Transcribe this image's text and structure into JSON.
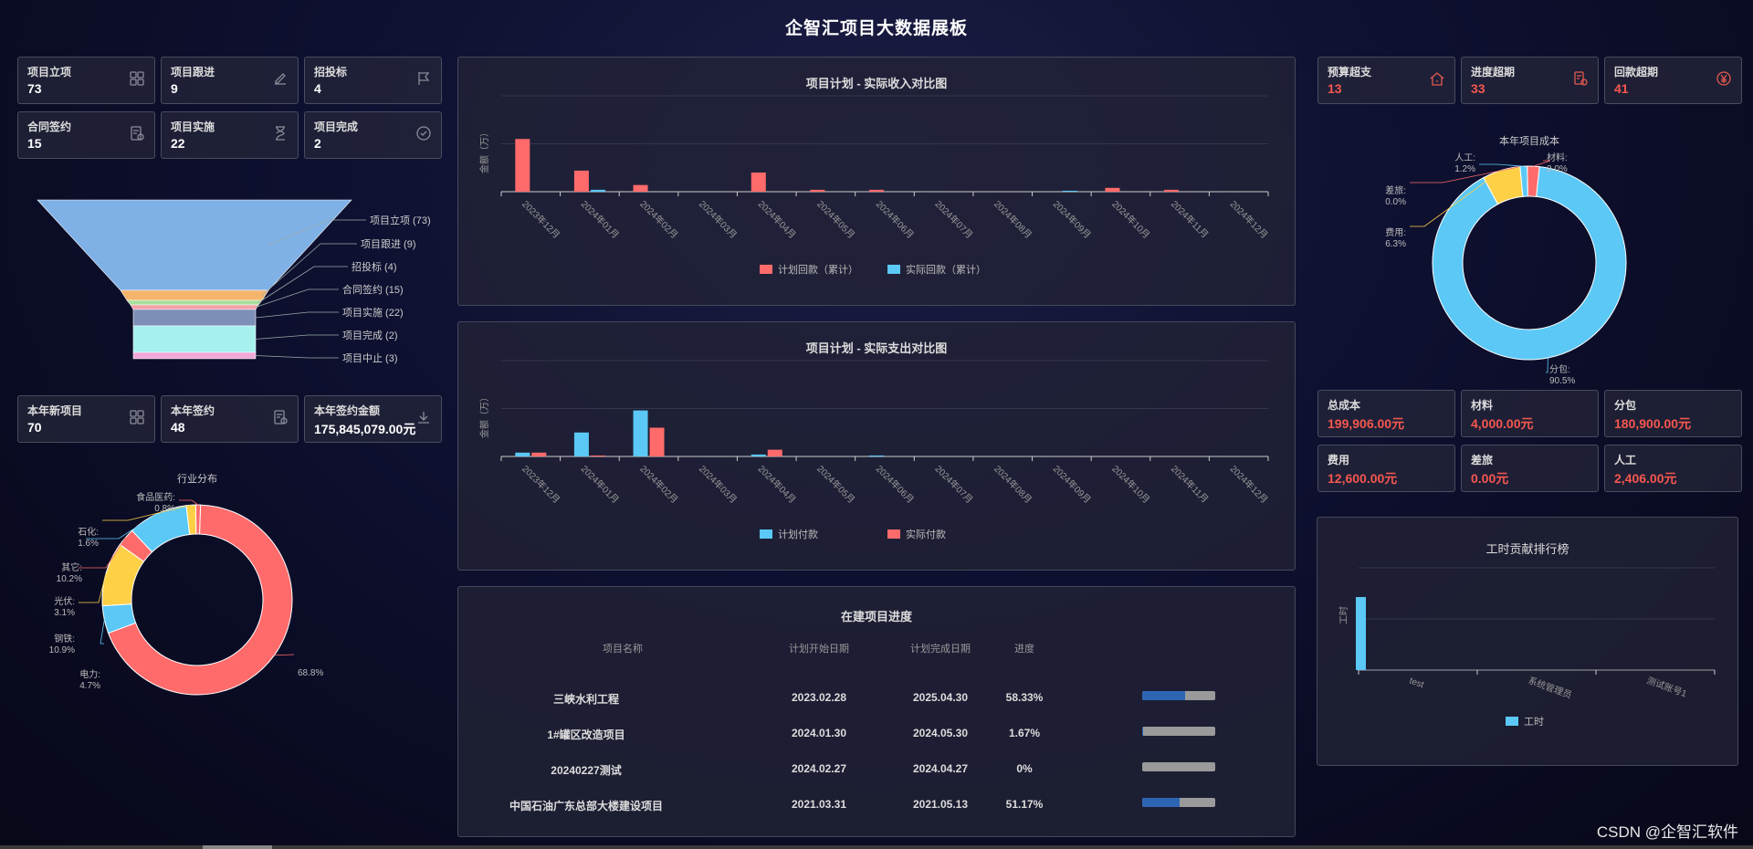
{
  "page_title": "企智汇项目大数据展板",
  "left_stats": [
    {
      "label": "项目立项",
      "value": "73",
      "icon": "grid-icon"
    },
    {
      "label": "项目跟进",
      "value": "9",
      "icon": "edit-icon"
    },
    {
      "label": "招投标",
      "value": "4",
      "icon": "flag-icon"
    },
    {
      "label": "合同签约",
      "value": "15",
      "icon": "contract-icon"
    },
    {
      "label": "项目实施",
      "value": "22",
      "icon": "hourglass-icon"
    },
    {
      "label": "项目完成",
      "value": "2",
      "icon": "check-circle-icon"
    }
  ],
  "funnel": {
    "labels": [
      "项目立项 (73)",
      "项目跟进 (9)",
      "招投标 (4)",
      "合同签约 (15)",
      "项目实施 (22)",
      "项目完成 (2)",
      "项目中止 (3)"
    ],
    "values": [
      73,
      9,
      4,
      15,
      22,
      2,
      3
    ],
    "colors": [
      "#7fb0e6",
      "#f4b46b",
      "#a8e09a",
      "#f4a0a8",
      "#7d8fb8",
      "#a6f0f0",
      "#f0a8d8"
    ]
  },
  "year_stats": [
    {
      "label": "本年新项目",
      "value": "70",
      "icon": "grid-icon"
    },
    {
      "label": "本年签约",
      "value": "48",
      "icon": "contract-icon"
    },
    {
      "label": "本年签约金额",
      "value": "175,845,079.00元",
      "icon": "download-icon"
    }
  ],
  "industry": {
    "title": "行业分布",
    "slices": [
      {
        "name": "",
        "pct": "68.8%",
        "value": 68.8,
        "color": "#ff6b6b"
      },
      {
        "name": "电力:",
        "pct": "4.7%",
        "value": 4.7,
        "color": "#5bc8f5"
      },
      {
        "name": "钢铁:",
        "pct": "10.9%",
        "value": 10.9,
        "color": "#fdd046"
      },
      {
        "name": "光伏:",
        "pct": "3.1%",
        "value": 3.1,
        "color": "#ff6b6b"
      },
      {
        "name": "其它:",
        "pct": "10.2%",
        "value": 10.2,
        "color": "#5bc8f5"
      },
      {
        "name": "石化:",
        "pct": "1.6%",
        "value": 1.6,
        "color": "#fdd046"
      },
      {
        "name": "食品医药:",
        "pct": "0.8%",
        "value": 0.8,
        "color": "#ff6b6b"
      }
    ]
  },
  "income_chart": {
    "title": "项目计划 - 实际收入对比图",
    "ylabel": "金额（万）",
    "categories": [
      "2023年12月",
      "2024年01月",
      "2024年02月",
      "2024年03月",
      "2024年04月",
      "2024年05月",
      "2024年06月",
      "2024年07月",
      "2024年08月",
      "2024年09月",
      "2024年10月",
      "2024年11月",
      "2024年12月"
    ],
    "series": [
      {
        "name": "计划回款（累计）",
        "color": "#ff6b6b",
        "values": [
          110,
          44,
          14,
          0,
          40,
          4,
          4,
          0,
          0,
          0,
          8,
          4,
          0
        ]
      },
      {
        "name": "实际回款（累计）",
        "color": "#5bc8f5",
        "values": [
          0,
          4,
          0,
          0,
          0,
          0,
          0,
          0,
          0,
          2,
          0,
          0,
          0
        ]
      }
    ],
    "ymax": 200
  },
  "expense_chart": {
    "title": "项目计划 - 实际支出对比图",
    "ylabel": "金额（万）",
    "categories": [
      "2023年12月",
      "2024年01月",
      "2024年02月",
      "2024年03月",
      "2024年04月",
      "2024年05月",
      "2024年06月",
      "2024年07月",
      "2024年08月",
      "2024年09月",
      "2024年10月",
      "2024年11月",
      "2024年12月"
    ],
    "series": [
      {
        "name": "计划付款",
        "color": "#5bc8f5",
        "values": [
          8,
          50,
          96,
          0,
          4,
          0,
          2,
          0,
          0,
          0,
          0,
          0,
          0
        ]
      },
      {
        "name": "实际付款",
        "color": "#ff6b6b",
        "values": [
          8,
          2,
          60,
          0,
          14,
          0,
          0,
          0,
          0,
          0,
          0,
          0,
          0
        ]
      }
    ],
    "ymax": 200
  },
  "progress": {
    "title": "在建项目进度",
    "headers": [
      "项目名称",
      "计划开始日期",
      "计划完成日期",
      "进度"
    ],
    "rows": [
      {
        "name": "三峡水利工程",
        "start": "2023.02.28",
        "end": "2025.04.30",
        "pct": "58.33%",
        "fraction": 0.5833
      },
      {
        "name": "1#罐区改造项目",
        "start": "2024.01.30",
        "end": "2024.05.30",
        "pct": "1.67%",
        "fraction": 0.0167
      },
      {
        "name": "20240227测试",
        "start": "2024.02.27",
        "end": "2024.04.27",
        "pct": "0%",
        "fraction": 0
      },
      {
        "name": "中国石油广东总部大楼建设项目",
        "start": "2021.03.31",
        "end": "2021.05.13",
        "pct": "51.17%",
        "fraction": 0.5117
      }
    ]
  },
  "right_stats": [
    {
      "label": "预算超支",
      "value": "13",
      "icon": "house-icon"
    },
    {
      "label": "进度超期",
      "value": "33",
      "icon": "clock-doc-icon"
    },
    {
      "label": "回款超期",
      "value": "41",
      "icon": "yen-icon"
    }
  ],
  "cost": {
    "title": "本年项目成本",
    "slices": [
      {
        "name": "分包:",
        "pct": "90.5%",
        "value": 90.5,
        "color": "#5bc8f5"
      },
      {
        "name": "费用:",
        "pct": "6.3%",
        "value": 6.3,
        "color": "#fdd046"
      },
      {
        "name": "差旅:",
        "pct": "0.0%",
        "value": 0.0,
        "color": "#ff6b6b"
      },
      {
        "name": "人工:",
        "pct": "1.2%",
        "value": 1.2,
        "color": "#5bc8f5"
      },
      {
        "name": "材料:",
        "pct": "2.0%",
        "value": 2.0,
        "color": "#ff6b6b"
      }
    ]
  },
  "cost_stats": [
    {
      "label": "总成本",
      "value": "199,906.00元"
    },
    {
      "label": "材料",
      "value": "4,000.00元"
    },
    {
      "label": "分包",
      "value": "180,900.00元"
    },
    {
      "label": "费用",
      "value": "12,600.00元"
    },
    {
      "label": "差旅",
      "value": "0.00元"
    },
    {
      "label": "人工",
      "value": "2,406.00元"
    }
  ],
  "hours": {
    "title": "工时贡献排行榜",
    "ylabel": "工时",
    "categories": [
      "test",
      "系统管理员",
      "测试账号1"
    ],
    "values": [
      100,
      0,
      0
    ],
    "legend": "工时",
    "color": "#5bc8f5"
  },
  "watermark": "CSDN @企智汇软件"
}
